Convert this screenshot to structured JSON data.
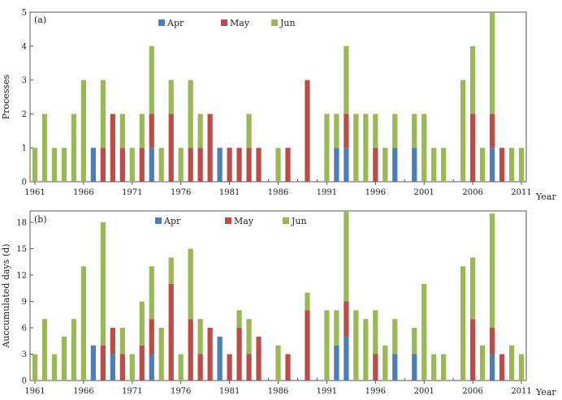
{
  "chart_data": [
    {
      "type": "bar",
      "stacked": true,
      "panel_label": "(a)",
      "ylabel": "Processes",
      "xlabel": "Year",
      "ylim": [
        0,
        5
      ],
      "yticks": [
        "0",
        "1",
        "2",
        "3",
        "4",
        "5"
      ],
      "xlim": [
        1960.5,
        2011.5
      ],
      "xticks": [
        "1961",
        "1966",
        "1971",
        "1976",
        "1981",
        "1986",
        "1991",
        "1996",
        "2001",
        "2006",
        "2011"
      ],
      "legend": [
        "Apr",
        "May",
        "Jun"
      ],
      "colors": [
        "#4a7ebb",
        "#be4b48",
        "#98b954"
      ],
      "years": [
        1961,
        1962,
        1963,
        1964,
        1965,
        1966,
        1967,
        1968,
        1969,
        1970,
        1971,
        1972,
        1973,
        1974,
        1975,
        1976,
        1977,
        1978,
        1979,
        1980,
        1981,
        1982,
        1983,
        1984,
        1985,
        1986,
        1987,
        1988,
        1989,
        1990,
        1991,
        1992,
        1993,
        1994,
        1995,
        1996,
        1997,
        1998,
        1999,
        2000,
        2001,
        2002,
        2003,
        2004,
        2005,
        2006,
        2007,
        2008,
        2009,
        2010,
        2011
      ],
      "series": [
        {
          "name": "Apr",
          "values": [
            0,
            0,
            0,
            0,
            0,
            0,
            1,
            0,
            0,
            0,
            0,
            0,
            1,
            0,
            0,
            0,
            0,
            0,
            0,
            1,
            0,
            0,
            0,
            0,
            0,
            0,
            0,
            0,
            0,
            0,
            0,
            1,
            1,
            0,
            0,
            0,
            0,
            1,
            0,
            1,
            0,
            0,
            0,
            0,
            0,
            0,
            0,
            1,
            0,
            0,
            0
          ]
        },
        {
          "name": "May",
          "values": [
            0,
            0,
            0,
            0,
            0,
            0,
            0,
            1,
            2,
            1,
            0,
            1,
            1,
            0,
            2,
            0,
            1,
            1,
            2,
            0,
            1,
            1,
            1,
            1,
            0,
            0,
            1,
            0,
            3,
            0,
            0,
            0,
            1,
            0,
            0,
            1,
            0,
            0,
            0,
            0,
            0,
            0,
            0,
            0,
            0,
            2,
            0,
            1,
            1,
            0,
            0
          ]
        },
        {
          "name": "Jun",
          "values": [
            1,
            2,
            1,
            1,
            2,
            3,
            0,
            2,
            0,
            1,
            1,
            1,
            2,
            1,
            1,
            1,
            2,
            1,
            0,
            0,
            0,
            0,
            1,
            0,
            0,
            1,
            0,
            0,
            0,
            0,
            2,
            1,
            2,
            2,
            2,
            1,
            1,
            1,
            0,
            1,
            2,
            1,
            1,
            0,
            3,
            2,
            1,
            3,
            0,
            1,
            1
          ]
        }
      ]
    },
    {
      "type": "bar",
      "stacked": true,
      "panel_label": "(b)",
      "ylabel": "Auccumulated days (d)",
      "xlabel": "Year",
      "ylim": [
        0,
        19.3
      ],
      "yticks": [
        "0",
        "3",
        "6",
        "9",
        "12",
        "15",
        "18"
      ],
      "xlim": [
        1960.5,
        2011.5
      ],
      "xticks": [
        "1961",
        "1966",
        "1971",
        "1976",
        "1981",
        "1986",
        "1991",
        "1996",
        "2001",
        "2006",
        "2011"
      ],
      "legend": [
        "Apr",
        "May",
        "Jun"
      ],
      "colors": [
        "#4a7ebb",
        "#be4b48",
        "#98b954"
      ],
      "years": [
        1961,
        1962,
        1963,
        1964,
        1965,
        1966,
        1967,
        1968,
        1969,
        1970,
        1971,
        1972,
        1973,
        1974,
        1975,
        1976,
        1977,
        1978,
        1979,
        1980,
        1981,
        1982,
        1983,
        1984,
        1985,
        1986,
        1987,
        1988,
        1989,
        1990,
        1991,
        1992,
        1993,
        1994,
        1995,
        1996,
        1997,
        1998,
        1999,
        2000,
        2001,
        2002,
        2003,
        2004,
        2005,
        2006,
        2007,
        2008,
        2009,
        2010,
        2011
      ],
      "series": [
        {
          "name": "Apr",
          "values": [
            0,
            0,
            0,
            0,
            0,
            0,
            4,
            0,
            3,
            0,
            0,
            0,
            3,
            0,
            0,
            0,
            0,
            0,
            0,
            5,
            0,
            0,
            0,
            0,
            0,
            0,
            0,
            0,
            0,
            0,
            0,
            4,
            5,
            0,
            0,
            0,
            0,
            3,
            0,
            3,
            0,
            0,
            0,
            0,
            0,
            0,
            0,
            3,
            0,
            0,
            0
          ]
        },
        {
          "name": "May",
          "values": [
            0,
            0,
            0,
            0,
            0,
            0,
            0,
            4,
            3,
            3,
            0,
            4,
            4,
            0,
            11,
            0,
            7,
            3,
            6,
            0,
            3,
            6,
            3,
            5,
            0,
            0,
            3,
            0,
            8,
            0,
            0,
            0,
            4,
            0,
            0,
            3,
            0,
            0,
            0,
            0,
            0,
            0,
            0,
            0,
            0,
            7,
            0,
            3,
            3,
            0,
            0
          ]
        },
        {
          "name": "Jun",
          "values": [
            3,
            7,
            3,
            5,
            7,
            13,
            0,
            14,
            0,
            3,
            3,
            5,
            6,
            6,
            3,
            3,
            8,
            4,
            0,
            0,
            0,
            2,
            4,
            0,
            0,
            4,
            0,
            0,
            2,
            0,
            8,
            4,
            11,
            8,
            7,
            5,
            4,
            4,
            0,
            3,
            11,
            3,
            3,
            0,
            13,
            7,
            4,
            13,
            0,
            4,
            3
          ]
        }
      ]
    }
  ]
}
